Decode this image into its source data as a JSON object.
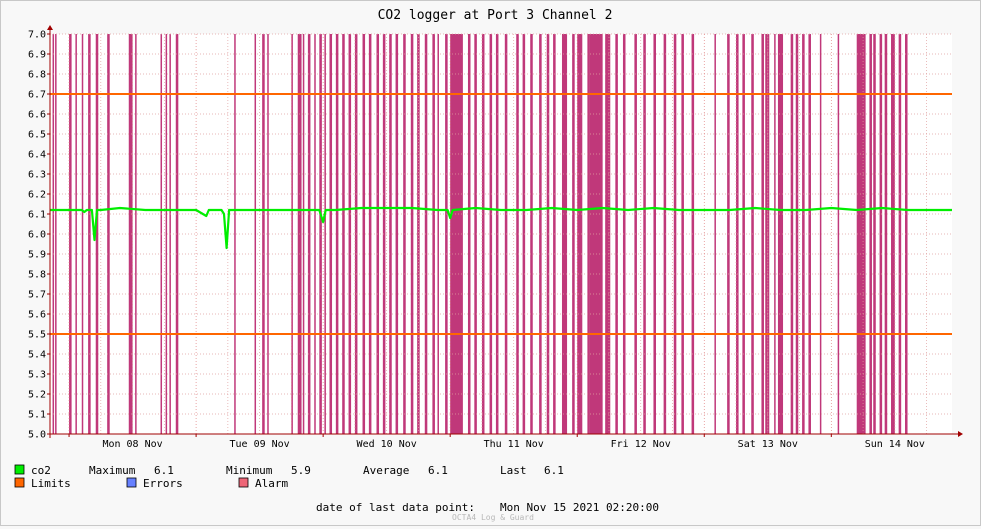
{
  "chart_data": {
    "type": "line",
    "title": "CO2 logger at Port 3 Channel 2",
    "ylim": [
      5.0,
      7.0
    ],
    "y_ticks": [
      "7.0",
      "6.9",
      "6.8",
      "6.7",
      "6.6",
      "6.5",
      "6.4",
      "6.3",
      "6.2",
      "6.1",
      "6.0",
      "5.9",
      "5.8",
      "5.7",
      "5.6",
      "5.5",
      "5.4",
      "5.3",
      "5.2",
      "5.1",
      "5.0"
    ],
    "x_ticks": [
      "Mon 08 Nov",
      "Tue 09 Nov",
      "Wed 10 Nov",
      "Thu 11 Nov",
      "Fri 12 Nov",
      "Sat 13 Nov",
      "Sun 14 Nov"
    ],
    "xlim_days": [
      7.85,
      14.95
    ],
    "grid": true,
    "limits": {
      "upper": 6.7,
      "lower": 5.5
    },
    "series": [
      {
        "name": "co2",
        "color": "#00ee00",
        "x_days": [
          7.85,
          8.0,
          8.1,
          8.12,
          8.14,
          8.18,
          8.2,
          8.22,
          8.25,
          8.4,
          8.6,
          8.8,
          9.0,
          9.08,
          9.1,
          9.12,
          9.2,
          9.22,
          9.24,
          9.26,
          9.4,
          9.6,
          9.8,
          9.97,
          10.0,
          10.02,
          10.1,
          10.3,
          10.5,
          10.7,
          10.9,
          10.98,
          11.0,
          11.02,
          11.2,
          11.4,
          11.6,
          11.8,
          12.0,
          12.2,
          12.4,
          12.6,
          12.8,
          13.0,
          13.2,
          13.4,
          13.6,
          13.8,
          14.0,
          14.2,
          14.4,
          14.6,
          14.8,
          14.95
        ],
        "values": [
          6.12,
          6.12,
          6.12,
          6.11,
          6.12,
          6.12,
          5.97,
          6.12,
          6.12,
          6.13,
          6.12,
          6.12,
          6.12,
          6.09,
          6.12,
          6.12,
          6.12,
          6.1,
          5.93,
          6.12,
          6.12,
          6.12,
          6.12,
          6.12,
          6.06,
          6.12,
          6.12,
          6.13,
          6.13,
          6.13,
          6.12,
          6.12,
          6.08,
          6.12,
          6.13,
          6.12,
          6.12,
          6.13,
          6.12,
          6.13,
          6.12,
          6.13,
          6.12,
          6.12,
          6.12,
          6.13,
          6.12,
          6.12,
          6.13,
          6.12,
          6.13,
          6.12,
          6.12,
          6.12
        ]
      }
    ],
    "alarm_periods": [
      [
        7.87,
        7.88
      ],
      [
        7.89,
        7.9
      ],
      [
        8.0,
        8.02
      ],
      [
        8.05,
        8.06
      ],
      [
        8.1,
        8.11
      ],
      [
        8.15,
        8.17
      ],
      [
        8.21,
        8.23
      ],
      [
        8.3,
        8.32
      ],
      [
        8.47,
        8.5
      ],
      [
        8.52,
        8.53
      ],
      [
        8.72,
        8.73
      ],
      [
        8.76,
        8.77
      ],
      [
        8.79,
        8.8
      ],
      [
        8.84,
        8.86
      ],
      [
        9.3,
        9.31
      ],
      [
        9.46,
        9.47
      ],
      [
        9.52,
        9.54
      ],
      [
        9.56,
        9.57
      ],
      [
        9.75,
        9.76
      ],
      [
        9.8,
        9.83
      ],
      [
        9.84,
        9.85
      ],
      [
        9.88,
        9.9
      ],
      [
        9.93,
        9.94
      ],
      [
        9.97,
        9.99
      ],
      [
        10.01,
        10.02
      ],
      [
        10.05,
        10.07
      ],
      [
        10.1,
        10.12
      ],
      [
        10.15,
        10.17
      ],
      [
        10.2,
        10.22
      ],
      [
        10.25,
        10.27
      ],
      [
        10.31,
        10.33
      ],
      [
        10.36,
        10.38
      ],
      [
        10.42,
        10.44
      ],
      [
        10.47,
        10.49
      ],
      [
        10.52,
        10.54
      ],
      [
        10.57,
        10.59
      ],
      [
        10.63,
        10.65
      ],
      [
        10.69,
        10.71
      ],
      [
        10.74,
        10.76
      ],
      [
        10.8,
        10.82
      ],
      [
        10.86,
        10.88
      ],
      [
        10.9,
        10.91
      ],
      [
        10.96,
        10.98
      ],
      [
        11.0,
        11.1
      ],
      [
        11.14,
        11.16
      ],
      [
        11.19,
        11.21
      ],
      [
        11.25,
        11.27
      ],
      [
        11.31,
        11.33
      ],
      [
        11.36,
        11.38
      ],
      [
        11.43,
        11.45
      ],
      [
        11.52,
        11.54
      ],
      [
        11.57,
        11.59
      ],
      [
        11.63,
        11.65
      ],
      [
        11.7,
        11.72
      ],
      [
        11.76,
        11.78
      ],
      [
        11.81,
        11.83
      ],
      [
        11.88,
        11.92
      ],
      [
        11.96,
        11.98
      ],
      [
        12.0,
        12.04
      ],
      [
        12.08,
        12.1
      ],
      [
        12.1,
        12.2
      ],
      [
        12.22,
        12.26
      ],
      [
        12.3,
        12.32
      ],
      [
        12.36,
        12.38
      ],
      [
        12.45,
        12.47
      ],
      [
        12.52,
        12.54
      ],
      [
        12.6,
        12.62
      ],
      [
        12.68,
        12.7
      ],
      [
        12.76,
        12.78
      ],
      [
        12.82,
        12.84
      ],
      [
        12.9,
        12.92
      ],
      [
        13.08,
        13.09
      ],
      [
        13.18,
        13.2
      ],
      [
        13.25,
        13.27
      ],
      [
        13.3,
        13.32
      ],
      [
        13.37,
        13.39
      ],
      [
        13.45,
        13.47
      ],
      [
        13.48,
        13.5
      ],
      [
        13.5,
        13.51
      ],
      [
        13.55,
        13.56
      ],
      [
        13.58,
        13.62
      ],
      [
        13.68,
        13.7
      ],
      [
        13.72,
        13.74
      ],
      [
        13.77,
        13.79
      ],
      [
        13.82,
        13.84
      ],
      [
        13.91,
        13.92
      ],
      [
        14.05,
        14.06
      ],
      [
        14.2,
        14.27
      ],
      [
        14.3,
        14.32
      ],
      [
        14.33,
        14.35
      ],
      [
        14.38,
        14.4
      ],
      [
        14.42,
        14.44
      ],
      [
        14.47,
        14.5
      ],
      [
        14.53,
        14.55
      ],
      [
        14.58,
        14.6
      ]
    ]
  },
  "legend": {
    "co2_label": "co2",
    "maximum_label": "Maximum",
    "maximum_value": "6.1",
    "minimum_label": "Minimum",
    "minimum_value": "5.9",
    "average_label": "Average",
    "average_value": "6.1",
    "last_label": "Last",
    "last_value": "6.1",
    "limits_label": "Limits",
    "errors_label": "Errors",
    "alarm_label": "Alarm",
    "colors": {
      "co2": "#00ee00",
      "limits": "#ff6600",
      "errors": "#6680ff",
      "alarm": "#ee6677"
    }
  },
  "footer": {
    "last_point_label": "date of last data point:",
    "last_point_value": "Mon Nov 15 2021 02:20:00",
    "credit": "OCTA4 Log & Guard"
  },
  "colors": {
    "alarm_fill": "#c0387a",
    "line": "#00ee00",
    "limit": "#ff6600",
    "grid": "#e0a0a0",
    "axis": "#a00000"
  }
}
